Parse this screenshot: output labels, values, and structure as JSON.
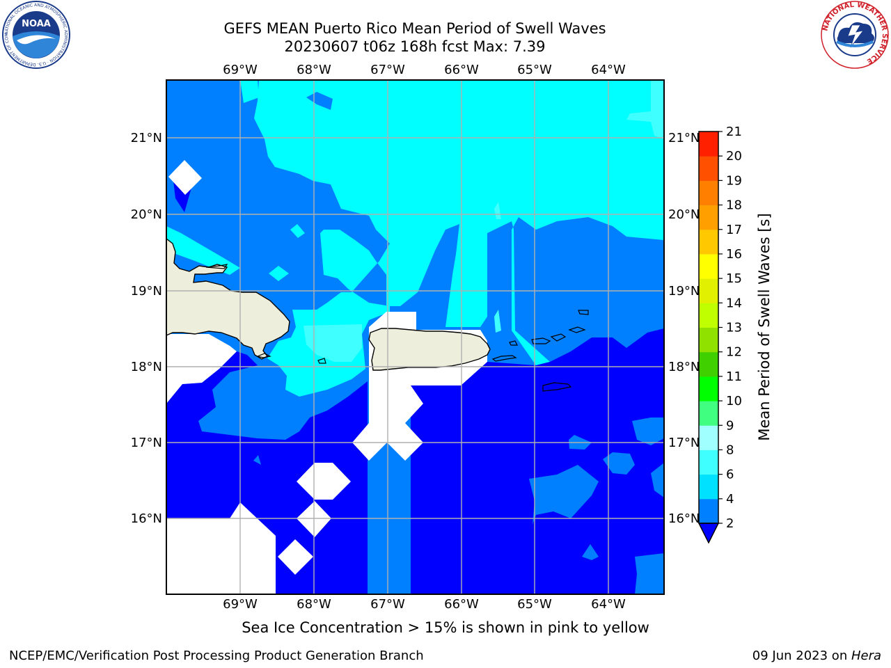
{
  "title": {
    "line1": "GEFS MEAN Puerto Rico Mean Period of Swell Waves",
    "line2": "20230607 t06z 168h fcst   Max: 7.39"
  },
  "map": {
    "lon_labels": [
      "69°W",
      "68°W",
      "67°W",
      "66°W",
      "65°W",
      "64°W"
    ],
    "lat_labels": [
      "21°N",
      "20°N",
      "19°N",
      "18°N",
      "17°N",
      "16°N"
    ],
    "land_color": "#eeeedd",
    "grid_color": "#b0b0b0"
  },
  "colorbar": {
    "label": "Mean Period of Swell Waves [s]",
    "ticks": [
      "2",
      "4",
      "6",
      "8",
      "9",
      "10",
      "11",
      "12",
      "13",
      "14",
      "15",
      "16",
      "17",
      "18",
      "19",
      "20",
      "21"
    ],
    "colors": [
      "#0000ff",
      "#0080ff",
      "#00e0ff",
      "#40ffff",
      "#a0ffff",
      "#40ff80",
      "#00ff00",
      "#40d000",
      "#90e000",
      "#c0ff00",
      "#e0f000",
      "#ffff00",
      "#ffc800",
      "#ffa000",
      "#ff8000",
      "#ff5000",
      "#ff2000",
      "#ff0000"
    ]
  },
  "note": "Sea Ice Concentration > 15% is shown in pink to yellow",
  "footer": {
    "left": "NCEP/EMC/Verification Post Processing Product Generation Branch",
    "date": "09 Jun 2023 on ",
    "host": "Hera"
  },
  "logos": {
    "noaa_text": "NOAA",
    "noaa_ring": "NATIONAL OCEANIC AND ATMOSPHERIC ADMINISTRATION · U.S. DEPARTMENT OF COMMERCE",
    "nws_ring": "NATIONAL WEATHER SERVICE"
  }
}
